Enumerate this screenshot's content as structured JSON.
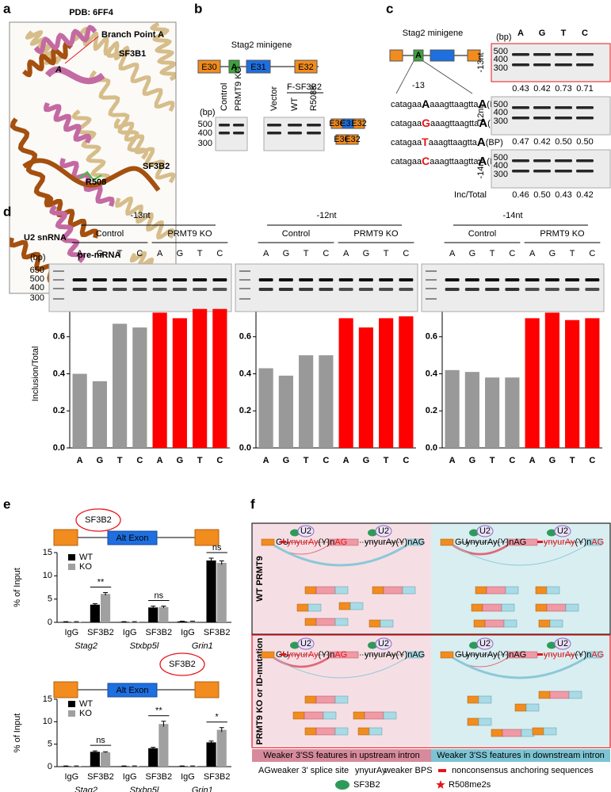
{
  "panel_a": {
    "letter": "a",
    "title": "PDB: 6FF4",
    "labels": {
      "branch": "Branch Point A",
      "a": "A",
      "sf3b1": "SF3B1",
      "sf3b2": "SF3B2",
      "r508": "R508",
      "u2": "U2 snRNA",
      "premrna": "pre-mRNA"
    }
  },
  "panel_b": {
    "letter": "b",
    "title": "Stag2 minigene",
    "exons": [
      "E30",
      "A",
      "E31",
      "E32"
    ],
    "lanes": [
      "Control",
      "PRMT9 KO",
      "Vector",
      "WT",
      "R508K"
    ],
    "construct": "F-SF3B2",
    "bp_unit": "(bp)",
    "bp": [
      "500",
      "400",
      "300"
    ],
    "products": [
      [
        "E30",
        "E31",
        "E32"
      ],
      [
        "E30",
        "E32"
      ]
    ]
  },
  "panel_c": {
    "letter": "c",
    "title": "Stag2 minigene",
    "exon": "A",
    "position": "-13",
    "sequences": [
      {
        "pre": "catagaa",
        "base": "A",
        "mid": "aaagttaagtta",
        "bp": "A",
        "suffix": "(BP)",
        "color": "#000000"
      },
      {
        "pre": "catagaa",
        "base": "G",
        "mid": "aaagttaagtta",
        "bp": "A",
        "suffix": "(BP)",
        "color": "#e8141b"
      },
      {
        "pre": "catagaa",
        "base": "T",
        "mid": "aaagttaagtta",
        "bp": "A",
        "suffix": "(BP)",
        "color": "#e8141b"
      },
      {
        "pre": "catagaa",
        "base": "C",
        "mid": "aaagttaagtta",
        "bp": "A",
        "suffix": "(BP)",
        "color": "#e8141b"
      }
    ],
    "lanes": [
      "A",
      "G",
      "T",
      "C"
    ],
    "lane_colors": [
      "#000000",
      "#e8141b",
      "#e8141b",
      "#e8141b"
    ],
    "bp_unit": "(bp)",
    "bp": [
      "500",
      "400",
      "300"
    ],
    "rows": [
      {
        "label": "-13nt",
        "values": [
          "0.43",
          "0.42",
          "0.73",
          "0.71"
        ],
        "colors": [
          "#000000",
          "#000000",
          "#e8141b",
          "#e8141b"
        ]
      },
      {
        "label": "-12nt",
        "values": [
          "0.47",
          "0.42",
          "0.50",
          "0.50"
        ],
        "colors": [
          "#000000",
          "#000000",
          "#000000",
          "#000000"
        ]
      },
      {
        "label": "-14nt",
        "values": [
          "0.46",
          "0.50",
          "0.43",
          "0.42"
        ],
        "colors": [
          "#000000",
          "#000000",
          "#000000",
          "#000000"
        ]
      }
    ],
    "ratio_label": "Inc/Total"
  },
  "panel_d": {
    "letter": "d",
    "bp_unit": "(bp)",
    "bp": [
      "650",
      "500",
      "400",
      "300"
    ]
  },
  "panel_e": {
    "letter": "e"
  },
  "panel_f": {
    "letter": "f",
    "row_labels": [
      "WT PRMT9",
      "PRMT9 KO or ID-mutation"
    ],
    "column_labels": [
      "Weaker 3'SS features in upstream intron",
      "Weaker 3'SS features in downstream intron"
    ],
    "diagram": {
      "u2": "U2",
      "gu": "GU",
      "bps": "ynyurAy",
      "poly": "(Y)n",
      "ag": "AG"
    },
    "legend": {
      "ag_symbol": "AG",
      "ag_text": "weaker 3' splice site",
      "bps_symbol": "ynyurAy",
      "bps_text": "weaker BPS",
      "anchor_text": "nonconsensus anchoring sequences",
      "sf3b2_text": "SF3B2",
      "r508_text": "R508me2s"
    }
  },
  "chart_data": [
    {
      "type": "bar",
      "title": "-13nt",
      "groups": [
        "Control",
        "PRMT9 KO"
      ],
      "group_colors": [
        "#000000",
        "#e8141b"
      ],
      "ylabel": "Inclusion/Total",
      "categories": [
        "A",
        "G",
        "T",
        "C",
        "A",
        "G",
        "T",
        "C"
      ],
      "values": [
        0.4,
        0.36,
        0.67,
        0.65,
        0.73,
        0.7,
        0.75,
        0.75
      ],
      "colors": [
        "#999999",
        "#999999",
        "#999999",
        "#999999",
        "#ff0000",
        "#ff0000",
        "#ff0000",
        "#ff0000"
      ],
      "ylim": [
        0,
        0.8
      ],
      "yticks": [
        {
          "value": 0,
          "label": "0.0"
        },
        0.2,
        0.4,
        0.6,
        0.8
      ]
    },
    {
      "type": "bar",
      "title": "-12nt",
      "groups": [
        "Control",
        "PRMT9 KO"
      ],
      "group_colors": [
        "#000000",
        "#e8141b"
      ],
      "categories": [
        "A",
        "G",
        "T",
        "C",
        "A",
        "G",
        "T",
        "C"
      ],
      "values": [
        0.43,
        0.39,
        0.5,
        0.5,
        0.7,
        0.65,
        0.7,
        0.71
      ],
      "colors": [
        "#999999",
        "#999999",
        "#999999",
        "#999999",
        "#ff0000",
        "#ff0000",
        "#ff0000",
        "#ff0000"
      ],
      "ylim": [
        0,
        0.8
      ],
      "yticks": [
        {
          "value": 0,
          "label": "0.0"
        },
        0.2,
        0.4,
        0.6,
        0.8
      ]
    },
    {
      "type": "bar",
      "title": "-14nt",
      "groups": [
        "Control",
        "PRMT9 KO"
      ],
      "group_colors": [
        "#000000",
        "#e8141b"
      ],
      "categories": [
        "A",
        "G",
        "T",
        "C",
        "A",
        "G",
        "T",
        "C"
      ],
      "values": [
        0.42,
        0.41,
        0.38,
        0.38,
        0.7,
        0.73,
        0.69,
        0.7
      ],
      "colors": [
        "#999999",
        "#999999",
        "#999999",
        "#999999",
        "#ff0000",
        "#ff0000",
        "#ff0000",
        "#ff0000"
      ],
      "ylim": [
        0,
        0.8
      ],
      "yticks": [
        {
          "value": 0,
          "label": "0.0"
        },
        0.2,
        0.4,
        0.6,
        0.8
      ]
    },
    {
      "type": "bar",
      "ylabel": "% of Input",
      "diagram": {
        "protein": "SF3B2",
        "exon": "Alt Exon"
      },
      "categories": [
        "IgG",
        "SF3B2",
        "IgG",
        "SF3B2",
        "IgG",
        "SF3B2"
      ],
      "groups": [
        "Stag2",
        "Stxbp5l",
        "Grin1"
      ],
      "series": [
        {
          "name": "WT",
          "color": "#000000",
          "values": [
            0.1,
            3.8,
            0.1,
            3.2,
            0.2,
            13.3
          ],
          "errors": [
            0.05,
            0.2,
            0.05,
            0.3,
            0.05,
            0.5
          ]
        },
        {
          "name": "KO",
          "color": "#a0a0a0",
          "values": [
            0.1,
            6.1,
            0.1,
            3.3,
            0.2,
            12.8
          ],
          "errors": [
            0.05,
            0.3,
            0.05,
            0.2,
            0.05,
            0.4
          ]
        }
      ],
      "annotations": [
        "**",
        "ns",
        "ns"
      ],
      "ylim": [
        0,
        15
      ],
      "yticks": [
        0,
        5,
        10,
        15
      ]
    },
    {
      "type": "bar",
      "ylabel": "% of Input",
      "diagram": {
        "protein": "SF3B2",
        "exon": "Alt Exon"
      },
      "categories": [
        "IgG",
        "SF3B2",
        "IgG",
        "SF3B2",
        "IgG",
        "SF3B2"
      ],
      "groups": [
        "Stag2",
        "Stxbp5l",
        "Grin1"
      ],
      "series": [
        {
          "name": "WT",
          "color": "#000000",
          "values": [
            0.1,
            3.3,
            0.1,
            4.1,
            0.1,
            5.4
          ],
          "errors": [
            0.05,
            0.2,
            0.05,
            0.2,
            0.05,
            0.3
          ]
        },
        {
          "name": "KO",
          "color": "#a0a0a0",
          "values": [
            0.1,
            3.2,
            0.1,
            9.5,
            0.1,
            8.2
          ],
          "errors": [
            0.05,
            0.1,
            0.05,
            0.6,
            0.05,
            0.5
          ]
        }
      ],
      "annotations": [
        "ns",
        "**",
        "*"
      ],
      "ylim": [
        0,
        15
      ],
      "yticks": [
        0,
        5,
        10,
        15
      ]
    }
  ]
}
